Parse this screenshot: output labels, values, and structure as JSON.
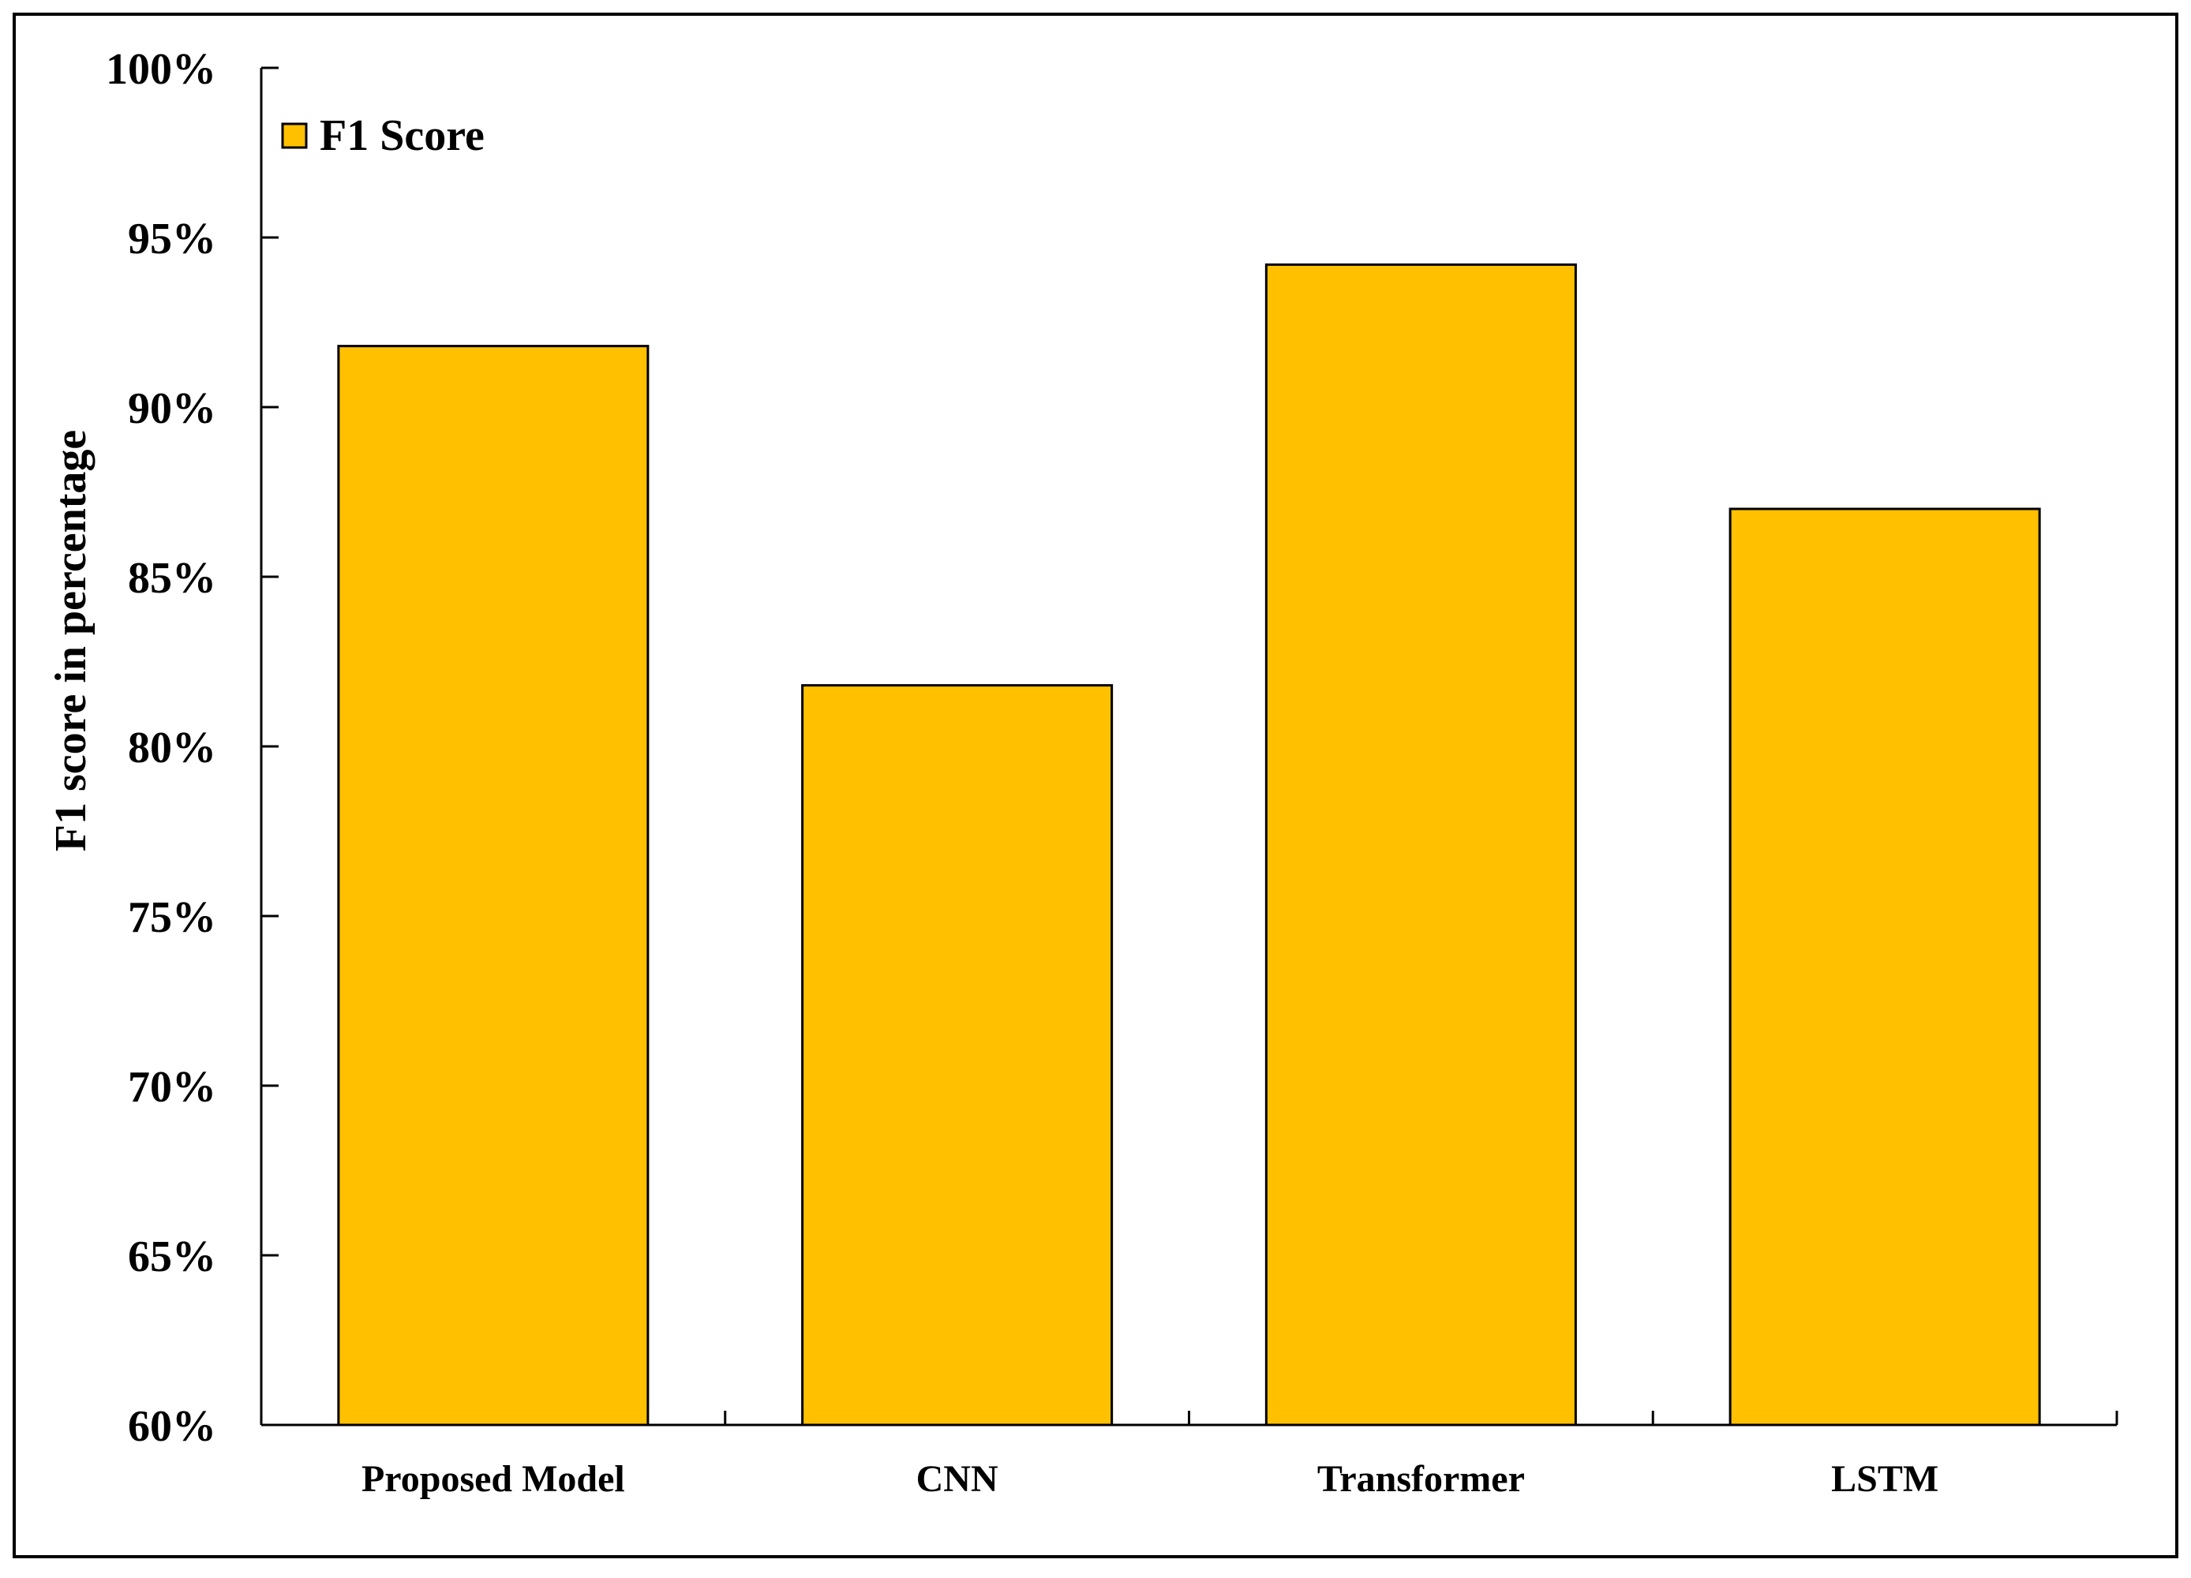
{
  "chart_data": {
    "type": "bar",
    "title": "",
    "xlabel": "",
    "ylabel": "F1 score in percentage",
    "categories": [
      "Proposed Model",
      "CNN",
      "Transformer",
      "LSTM"
    ],
    "series": [
      {
        "name": "F1 Score",
        "values": [
          91.8,
          81.8,
          94.2,
          87.0
        ],
        "color": "#FFC000"
      }
    ],
    "ylim": [
      60,
      100
    ],
    "ytick_values": [
      60,
      65,
      70,
      75,
      80,
      85,
      90,
      95,
      100
    ],
    "ytick_labels": [
      "60%",
      "65%",
      "70%",
      "75%",
      "80%",
      "85%",
      "90%",
      "95%",
      "100%"
    ],
    "grid": false,
    "legend_position": "top-left"
  }
}
